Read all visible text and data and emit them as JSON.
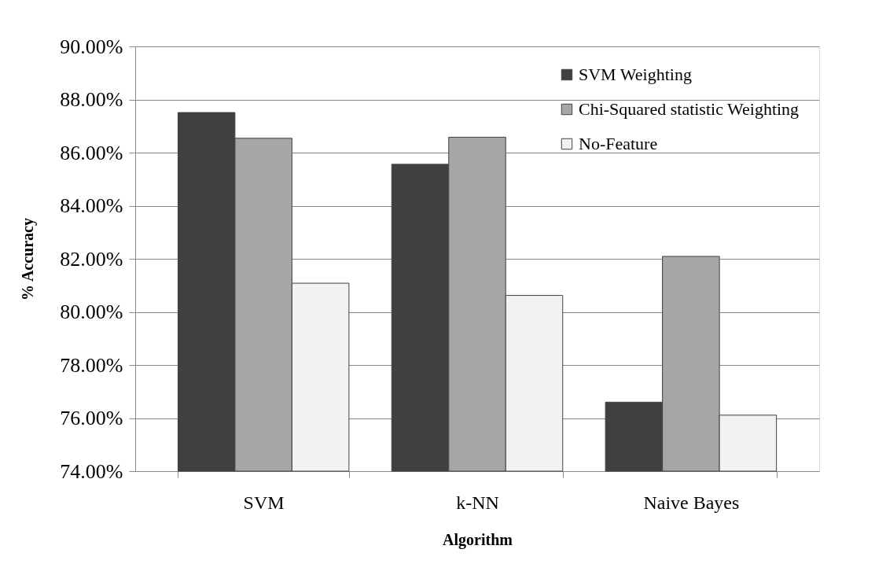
{
  "chart_data": {
    "type": "bar",
    "xlabel": "Algorithm",
    "ylabel": "% Accuracy",
    "categories": [
      "SVM",
      "k-NN",
      "Naive Bayes"
    ],
    "series": [
      {
        "name": "SVM Weighting",
        "color": "#404040",
        "values": [
          87.51,
          85.56,
          76.6
        ]
      },
      {
        "name": "Chi-Squared statistic Weighting",
        "color": "#a6a6a6",
        "values": [
          86.54,
          86.58,
          82.09
        ]
      },
      {
        "name": "No-Feature",
        "color": "#f2f2f2",
        "values": [
          81.08,
          80.62,
          76.11
        ]
      }
    ],
    "ylim": [
      74,
      90
    ],
    "yticks": [
      {
        "value": 74,
        "label": "74.00%"
      },
      {
        "value": 76,
        "label": "76.00%"
      },
      {
        "value": 78,
        "label": "78.00%"
      },
      {
        "value": 80,
        "label": "80.00%"
      },
      {
        "value": 82,
        "label": "82.00%"
      },
      {
        "value": 84,
        "label": "84.00%"
      },
      {
        "value": 86,
        "label": "86.00%"
      },
      {
        "value": 88,
        "label": "88.00%"
      },
      {
        "value": 90,
        "label": "90.00%"
      }
    ],
    "grid": "y",
    "legend": "top right"
  }
}
